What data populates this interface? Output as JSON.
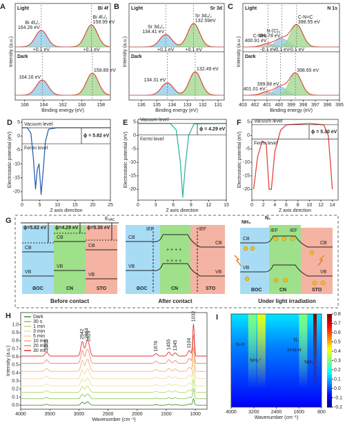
{
  "chart_data": [
    {
      "type": "peaks",
      "panel": "A",
      "title": "Bi 4f",
      "xlabel": "Binding energy (eV)",
      "ylabel": "Intensity (a.u.)",
      "xlim": [
        167,
        157
      ],
      "xticks": [
        166,
        164,
        162,
        160,
        158
      ],
      "subplots": [
        {
          "label": "Light",
          "names": [
            "Bi 4f₅/₂",
            "Bi 4f₇/₂"
          ],
          "peaks": [
            164.26,
            158.99
          ],
          "value_labels": [
            "164.26 eV",
            "158.99 eV"
          ],
          "heights": [
            0.6,
            0.8
          ],
          "colors": [
            "#8fc9e8",
            "#9ed68a"
          ],
          "shift_labels": [
            "+0.1 eV",
            "+0.1 eV"
          ]
        },
        {
          "label": "Dark",
          "peaks": [
            164.16,
            158.89
          ],
          "value_labels": [
            "164.16 eV",
            "158.89 eV"
          ],
          "heights": [
            0.55,
            0.8
          ],
          "colors": [
            "#8fc9e8",
            "#9ed68a"
          ]
        }
      ]
    },
    {
      "type": "peaks",
      "panel": "B",
      "title": "Sr 3d",
      "xlabel": "Binding energy (eV)",
      "ylabel": "Intensity (a.u.)",
      "xlim": [
        136.8,
        130.6
      ],
      "xticks": [
        136,
        135,
        134,
        133,
        132,
        131
      ],
      "subplots": [
        {
          "label": "Light",
          "names": [
            "Sr 3d₃/₂",
            "Sr 3d₅/₂"
          ],
          "peaks": [
            134.41,
            132.59
          ],
          "value_labels": [
            "134.41 eV",
            "132.59eV"
          ],
          "heights": [
            0.45,
            0.85
          ],
          "colors": [
            "#8fc9e8",
            "#9ed68a"
          ],
          "shift_labels": [
            "+0.1 eV",
            "+0.1 eV"
          ]
        },
        {
          "label": "Dark",
          "peaks": [
            134.31,
            132.49
          ],
          "value_labels": [
            "134.31 eV",
            "132.49 eV"
          ],
          "heights": [
            0.45,
            0.85
          ],
          "colors": [
            "#8fc9e8",
            "#9ed68a"
          ]
        }
      ]
    },
    {
      "type": "peaks",
      "panel": "C",
      "title": "N 1s",
      "xlabel": "Binding energy (eV)",
      "ylabel": "Intensity (a.u.)",
      "xlim": [
        403,
        395
      ],
      "xticks": [
        403,
        402,
        401,
        400,
        399,
        398,
        397,
        396,
        395
      ],
      "subplots": [
        {
          "label": "Light",
          "names": [
            "C-NHₓ",
            "N-(C)₃",
            "C-N=C"
          ],
          "peaks": [
            400.91,
            399.78,
            398.55
          ],
          "value_labels": [
            "400.91 eV",
            "399.78 eV",
            "398.55 eV"
          ],
          "heights": [
            0.12,
            0.3,
            0.8
          ],
          "colors": [
            "#f4a8a0",
            "#8fc9e8",
            "#9ed68a"
          ],
          "shift_labels": [
            "-0.1 eV",
            "-0.1 eV",
            "-0.1 eV"
          ]
        },
        {
          "label": "Dark",
          "peaks": [
            401.01,
            399.88,
            398.65
          ],
          "value_labels": [
            "401.01 eV",
            "399.88 eV",
            "398.65 eV"
          ],
          "heights": [
            0.12,
            0.3,
            0.8
          ],
          "colors": [
            "#f4a8a0",
            "#8fc9e8",
            "#9ed68a"
          ]
        }
      ]
    },
    {
      "type": "line",
      "panel": "D",
      "xlabel": "Z axis direction",
      "ylabel": "Electrostatic potential (eV)",
      "color": "#2b5fb4",
      "xlim": [
        0,
        25
      ],
      "xticks": [
        0,
        5,
        10,
        15,
        20,
        25
      ],
      "ylim": [
        -23,
        6
      ],
      "yticks": [
        5,
        0,
        -5,
        -10,
        -15,
        -20
      ],
      "x": [
        0,
        1.5,
        2.5,
        3.2,
        3.8,
        4.3,
        4.8,
        5.4,
        6,
        6.6,
        7.5,
        10,
        25
      ],
      "values": [
        3,
        3,
        1,
        -8,
        -19,
        -12,
        -10,
        -21,
        -12,
        -2,
        2.5,
        3,
        3
      ],
      "vacuum_label": "Vacuum level",
      "fermi_label": "Fermi level",
      "vacuum_level": 3,
      "work_function": 5.82,
      "work_function_label": "ϕ = 5.82 eV"
    },
    {
      "type": "line",
      "panel": "E",
      "xlabel": "Z axis direction",
      "ylabel": "Electrostatic potential (eV)",
      "color": "#2fb89a",
      "xlim": [
        0,
        15
      ],
      "xticks": [
        0,
        3,
        6,
        9,
        12,
        15
      ],
      "ylim": [
        -24,
        6
      ],
      "yticks": [
        5,
        0,
        -5,
        -10,
        -15,
        -20
      ],
      "x": [
        0,
        5.5,
        6.5,
        7.2,
        7.6,
        8,
        8.6,
        9.5,
        15
      ],
      "values": [
        4.5,
        4.5,
        2,
        -10,
        -23,
        -12,
        0,
        4.3,
        4.5
      ],
      "vacuum_label": "Vacuum level",
      "fermi_label": "Fermi level",
      "vacuum_level": 4.5,
      "work_function": 4.29,
      "work_function_label": "ϕ = 4.29 eV"
    },
    {
      "type": "line",
      "panel": "F",
      "xlabel": "Z axis direction",
      "ylabel": "Electrostatic potential (eV)",
      "color": "#e0443a",
      "xlim": [
        0,
        15
      ],
      "xticks": [
        0,
        2,
        4,
        6,
        8,
        10,
        12,
        14
      ],
      "ylim": [
        -24,
        6
      ],
      "yticks": [
        5,
        0,
        -5,
        -10,
        -15,
        -20
      ],
      "x": [
        0.3,
        1,
        1.8,
        2.5,
        3,
        3.4,
        4,
        5,
        6,
        10,
        12.5,
        13.3,
        14
      ],
      "values": [
        -20,
        -8,
        -2,
        -3,
        -20,
        -20,
        -6,
        2,
        4,
        4.5,
        4,
        0,
        -20
      ],
      "vacuum_label": "Vacuum level",
      "fermi_label": "Fermi level",
      "vacuum_level": 4,
      "work_function": 5.3,
      "work_function_label": "ϕ = 5.30 eV"
    },
    {
      "type": "spectra",
      "panel": "H",
      "xlabel": "Wavenumber (cm⁻¹)",
      "ylabel": "Intensity (a.u.)",
      "xlim": [
        4000,
        800
      ],
      "xticks": [
        4000,
        3500,
        3000,
        2500,
        2000,
        1500,
        1000
      ],
      "ylim": [
        -0.05,
        1.15
      ],
      "yticks": [
        {
          "value": 0,
          "label": "0.0"
        },
        0.1,
        0.2,
        0.3,
        0.4,
        0.5,
        0.6,
        0.7,
        0.8,
        0.9,
        {
          "value": 1,
          "label": "1.0"
        }
      ],
      "peaks": [
        3555,
        2942,
        2864,
        2829,
        1678,
        1455,
        1345,
        1104,
        1032
      ],
      "peak_heights": [
        0.05,
        0.18,
        0.15,
        0.1,
        0.03,
        0.05,
        0.04,
        0.07,
        0.4
      ],
      "legend": "upper-left",
      "series": [
        {
          "name": "Dark",
          "color": "#4e8a2e",
          "offset": 0.0,
          "scale": 0.2
        },
        {
          "name": "30 s",
          "color": "#86c45a",
          "offset": 0.08,
          "scale": 0.3
        },
        {
          "name": "1 min",
          "color": "#b9dc7a",
          "offset": 0.16,
          "scale": 0.4
        },
        {
          "name": "3 min",
          "color": "#e6e69a",
          "offset": 0.24,
          "scale": 0.5
        },
        {
          "name": "5 min",
          "color": "#f5d7a0",
          "offset": 0.33,
          "scale": 0.6
        },
        {
          "name": "10 min",
          "color": "#f3b17a",
          "offset": 0.42,
          "scale": 0.75
        },
        {
          "name": "20 min",
          "color": "#ee8a72",
          "offset": 0.52,
          "scale": 0.88
        },
        {
          "name": "30 min",
          "color": "#e03030",
          "offset": 0.61,
          "scale": 1.0
        }
      ]
    },
    {
      "type": "heatmap",
      "panel": "I",
      "xlabel": "Wavenumber (cm⁻¹)",
      "xlim": [
        4000,
        800
      ],
      "xticks": [
        4000,
        3200,
        2400,
        1600,
        800
      ],
      "clim": [
        -0.2,
        0.8
      ],
      "cticks": [
        0.8,
        0.7,
        0.6,
        0.5,
        0.4,
        0.3,
        0.2,
        0.1,
        {
          "value": 0,
          "label": "0.0"
        },
        -0.1,
        -0.2
      ],
      "bands": [
        {
          "x": 3250,
          "value": 0.3
        },
        {
          "x": 2930,
          "value": 0.4
        },
        {
          "x": 1450,
          "value": 0.3
        },
        {
          "x": 1032,
          "value": 0.8
        }
      ],
      "labels": [
        "N-H",
        "NH₄⁺",
        "N₂",
        "H-N-H",
        "NH₂"
      ]
    }
  ],
  "diagram": {
    "panel": "G",
    "evac": "E",
    "evac_sub": "VAC",
    "before": {
      "phi": [
        "ϕ=5.82 eV",
        "ϕ=4.29 eV",
        "ϕ=5.30 eV"
      ],
      "cb": [
        "CB",
        "CB",
        "CB"
      ],
      "vb": [
        "VB",
        "VB",
        "VB"
      ],
      "names": [
        "BOC",
        "CN",
        "STO"
      ],
      "caption": "Before contact"
    },
    "after": {
      "ief": [
        "IEF",
        "IEF"
      ],
      "cb": [
        "CB",
        "CB"
      ],
      "vb": [
        "VB",
        "VB"
      ],
      "names": [
        "BOC",
        "CN",
        "STO"
      ],
      "caption": "After contact"
    },
    "light": {
      "nh3": "NH₃",
      "n2": "N₂",
      "ief": [
        "IEF",
        "IEF"
      ],
      "cb": [
        "CB",
        "CB"
      ],
      "vb": [
        "VB",
        "VB"
      ],
      "names": [
        "BOC",
        "CN",
        "STO"
      ],
      "caption": "Under light irradiation"
    }
  }
}
